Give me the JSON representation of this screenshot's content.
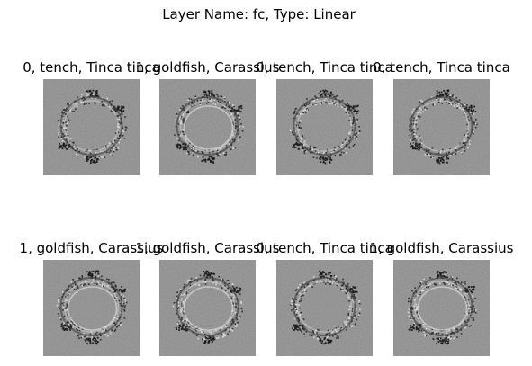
{
  "figure": {
    "title": "Layer Name: fc, Type: Linear"
  },
  "panels": [
    {
      "title": "0, tench, Tinca tinca",
      "image": "grayscale-saliency-map-ring"
    },
    {
      "title": "1, goldfish, Carassius",
      "image": "grayscale-saliency-map-double-ring"
    },
    {
      "title": "0, tench, Tinca tinca",
      "image": "grayscale-saliency-map-ring"
    },
    {
      "title": "0, tench, Tinca tinca",
      "image": "grayscale-saliency-map-ring"
    },
    {
      "title": "1, goldfish, Carassius",
      "image": "grayscale-saliency-map-double-ring"
    },
    {
      "title": "1, goldfish, Carassius",
      "image": "grayscale-saliency-map-double-ring"
    },
    {
      "title": "0, tench, Tinca tinca",
      "image": "grayscale-saliency-map-ring"
    },
    {
      "title": "1, goldfish, Carassius",
      "image": "grayscale-saliency-map-double-ring"
    }
  ]
}
